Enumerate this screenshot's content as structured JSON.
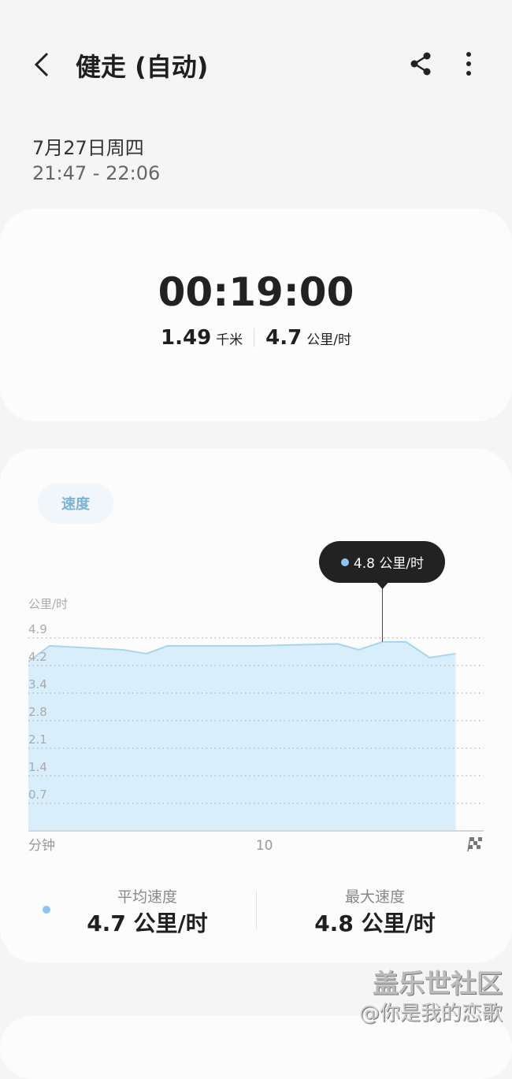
{
  "header": {
    "title": "健走 (自动)",
    "back_icon": "chevron-left-icon",
    "share_icon": "share-icon",
    "more_icon": "more-vertical-icon"
  },
  "session": {
    "date": "7月27日周四",
    "time_range": "21:47 - 22:06"
  },
  "summary": {
    "duration": "00:19:00",
    "distance": "1.49",
    "distance_unit": "千米",
    "speed": "4.7",
    "speed_unit": "公里/时"
  },
  "chart_tab": {
    "label": "速度"
  },
  "tooltip": {
    "text": "4.8 公里/时"
  },
  "colors": {
    "fill": "#d8eefb",
    "line": "#a9d6ea",
    "accent": "#8cc4f4",
    "tooltip_bg": "#222222"
  },
  "chart_data": {
    "type": "area",
    "ylabel": "公里/时",
    "xlabel": "分钟",
    "y_ticks": [
      "4.9",
      "4.2",
      "3.4",
      "2.8",
      "2.1",
      "1.4",
      "0.7"
    ],
    "x_ticks": [
      "10"
    ],
    "x_end_icon": "checkered-flag-icon",
    "xlim": [
      0,
      19
    ],
    "ylim": [
      0,
      4.9
    ],
    "grid": true,
    "x": [
      0,
      0.9,
      4.0,
      5.0,
      5.9,
      9.7,
      13.1,
      14.0,
      15.0,
      16.0,
      17.0,
      18.1
    ],
    "y": [
      4.3,
      4.7,
      4.6,
      4.5,
      4.7,
      4.7,
      4.75,
      4.6,
      4.8,
      4.8,
      4.4,
      4.5
    ],
    "highlight": {
      "x": 15.0,
      "y": 4.8
    }
  },
  "stats": [
    {
      "label": "平均速度",
      "value": "4.7 公里/时"
    },
    {
      "label": "最大速度",
      "value": "4.8 公里/时"
    }
  ],
  "watermark": {
    "line1": "盖乐世社区",
    "line2": "@你是我的恋歌"
  }
}
